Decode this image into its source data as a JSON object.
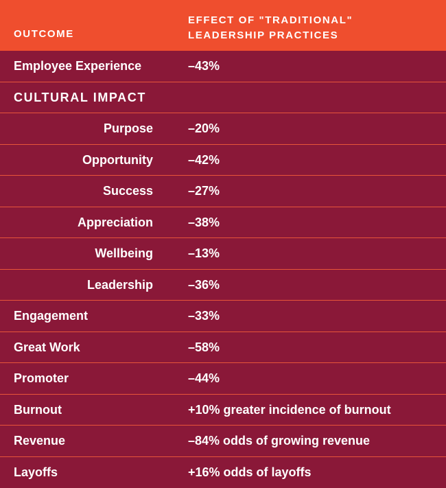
{
  "header": {
    "outcome": "OUTCOME",
    "effect": "EFFECT OF \"TRADITIONAL\"\nLEADERSHIP PRACTICES"
  },
  "colors": {
    "header_bg": "#ef4e2e",
    "body_bg": "#8a1838",
    "divider": "#e8553a",
    "text": "#ffffff"
  },
  "rows": [
    {
      "outcome": "Employee Experience",
      "effect": "–43%",
      "style": "primary"
    },
    {
      "outcome": "CULTURAL IMPACT",
      "effect": "",
      "style": "section"
    },
    {
      "outcome": "Purpose",
      "effect": "–20%",
      "style": "sub"
    },
    {
      "outcome": "Opportunity",
      "effect": "–42%",
      "style": "sub"
    },
    {
      "outcome": "Success",
      "effect": "–27%",
      "style": "sub"
    },
    {
      "outcome": "Appreciation",
      "effect": "–38%",
      "style": "sub"
    },
    {
      "outcome": "Wellbeing",
      "effect": "–13%",
      "style": "sub"
    },
    {
      "outcome": "Leadership",
      "effect": "–36%",
      "style": "sub"
    },
    {
      "outcome": "Engagement",
      "effect": "–33%",
      "style": "primary"
    },
    {
      "outcome": "Great Work",
      "effect": "–58%",
      "style": "primary"
    },
    {
      "outcome": "Promoter",
      "effect": "–44%",
      "style": "primary"
    },
    {
      "outcome": "Burnout",
      "effect": "+10% greater incidence of burnout",
      "style": "primary"
    },
    {
      "outcome": "Revenue",
      "effect": "–84% odds of growing revenue",
      "style": "primary"
    },
    {
      "outcome": "Layoffs",
      "effect": "+16% odds of layoffs",
      "style": "primary"
    }
  ]
}
